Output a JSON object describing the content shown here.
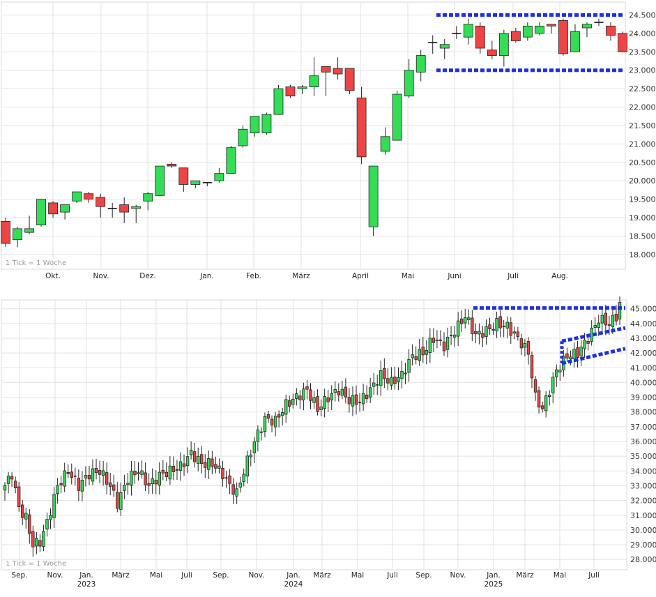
{
  "chart_data": [
    {
      "type": "candlestick",
      "interval_note": "1 Tick = 1 Woche",
      "x_labels": [
        "Okt.",
        "Nov.",
        "Dez.",
        "Jan.",
        "Feb.",
        "März",
        "April",
        "Mai",
        "Juni",
        "Juli",
        "Aug."
      ],
      "y_ticks": [
        "18.000",
        "18.500",
        "19.000",
        "19.500",
        "20.000",
        "20.500",
        "21.000",
        "21.500",
        "22.000",
        "22.500",
        "23.000",
        "23.500",
        "24.000",
        "24.500"
      ],
      "ylim": [
        17.6,
        24.85
      ],
      "colors": {
        "up": "#33dd55",
        "down": "#ee4444",
        "annotation": "#1f2fe6"
      },
      "candles": [
        [
          18.9,
          18.3,
          19.0,
          18.2
        ],
        [
          18.4,
          18.7,
          18.75,
          18.2
        ],
        [
          18.6,
          18.7,
          19.05,
          18.55
        ],
        [
          18.8,
          19.5,
          19.5,
          18.75
        ],
        [
          19.4,
          19.1,
          19.45,
          19.0
        ],
        [
          19.15,
          19.35,
          19.35,
          18.95
        ],
        [
          19.45,
          19.7,
          19.7,
          19.4
        ],
        [
          19.65,
          19.5,
          19.7,
          19.4
        ],
        [
          19.55,
          19.3,
          19.65,
          19.0
        ],
        [
          19.25,
          19.25,
          19.4,
          19.0
        ],
        [
          19.35,
          19.15,
          19.55,
          18.85
        ],
        [
          19.25,
          19.3,
          19.35,
          18.85
        ],
        [
          19.45,
          19.65,
          19.7,
          19.2
        ],
        [
          19.6,
          20.4,
          20.4,
          19.6
        ],
        [
          20.45,
          20.4,
          20.5,
          20.35
        ],
        [
          20.35,
          19.9,
          20.35,
          19.7
        ],
        [
          19.9,
          20.0,
          20.0,
          19.8
        ],
        [
          19.95,
          19.95,
          19.95,
          19.85
        ],
        [
          20.0,
          20.2,
          20.35,
          19.95
        ],
        [
          20.2,
          20.9,
          20.95,
          20.2
        ],
        [
          20.95,
          21.4,
          21.5,
          20.9
        ],
        [
          21.3,
          21.75,
          21.75,
          21.2
        ],
        [
          21.3,
          21.8,
          21.85,
          21.25
        ],
        [
          21.8,
          22.5,
          22.6,
          21.8
        ],
        [
          22.55,
          22.3,
          22.6,
          22.25
        ],
        [
          22.5,
          22.55,
          22.6,
          22.35
        ],
        [
          22.55,
          22.85,
          23.35,
          22.3
        ],
        [
          23.1,
          22.95,
          23.1,
          22.3
        ],
        [
          23.05,
          22.9,
          23.35,
          22.75
        ],
        [
          23.05,
          22.45,
          23.05,
          22.35
        ],
        [
          22.25,
          20.65,
          22.55,
          20.45
        ],
        [
          18.75,
          20.4,
          20.4,
          18.5
        ],
        [
          20.8,
          21.2,
          21.45,
          20.7
        ],
        [
          21.1,
          22.35,
          22.45,
          21.1
        ],
        [
          22.3,
          23.0,
          23.3,
          22.25
        ],
        [
          22.95,
          23.4,
          23.55,
          22.7
        ],
        [
          23.75,
          23.75,
          23.95,
          23.45
        ],
        [
          23.6,
          23.7,
          23.85,
          23.3
        ],
        [
          24.0,
          24.0,
          24.2,
          23.85
        ],
        [
          23.9,
          24.25,
          24.4,
          23.7
        ],
        [
          24.2,
          23.6,
          24.3,
          23.45
        ],
        [
          23.55,
          23.4,
          23.8,
          23.3
        ],
        [
          23.4,
          24.0,
          24.1,
          23.1
        ],
        [
          24.05,
          23.8,
          24.15,
          23.75
        ],
        [
          23.9,
          24.2,
          24.3,
          23.8
        ],
        [
          24.0,
          24.2,
          24.3,
          23.95
        ],
        [
          24.25,
          24.2,
          24.25,
          24.0
        ],
        [
          24.35,
          23.45,
          24.4,
          23.4
        ],
        [
          23.5,
          24.05,
          24.25,
          23.5
        ],
        [
          24.15,
          24.25,
          24.3,
          23.9
        ],
        [
          24.3,
          24.3,
          24.4,
          24.2
        ],
        [
          24.2,
          23.95,
          24.3,
          23.8
        ],
        [
          24.0,
          23.5,
          24.05,
          23.5
        ]
      ]
    },
    {
      "type": "candlestick",
      "interval_note": "1 Tick = 1 Woche",
      "x_labels": [
        "Sep.",
        "Nov.",
        "Jan.",
        "März",
        "Mai",
        "Juli",
        "Sep.",
        "Nov.",
        "Jan.",
        "März",
        "Mai",
        "Juli",
        "Sep.",
        "Nov.",
        "Jan.",
        "März",
        "Mai",
        "Juli"
      ],
      "year_labels": [
        "2023",
        "2024",
        "2025"
      ],
      "y_ticks": [
        "28.000",
        "29.000",
        "30.000",
        "31.000",
        "32.000",
        "33.000",
        "34.000",
        "35.000",
        "36.000",
        "37.000",
        "38.000",
        "39.000",
        "40.000",
        "41.000",
        "42.000",
        "43.000",
        "44.000",
        "45.000"
      ],
      "ylim": [
        27.3,
        45.6
      ],
      "colors": {
        "up": "#33dd55",
        "down": "#ee4444",
        "annotation": "#1f2fe6"
      },
      "anchors": [
        [
          0,
          33.0
        ],
        [
          2,
          33.8
        ],
        [
          4,
          31.5
        ],
        [
          6,
          30.8
        ],
        [
          8,
          29.0
        ],
        [
          10,
          29.2
        ],
        [
          12,
          30.5
        ],
        [
          15,
          33.0
        ],
        [
          18,
          34.0
        ],
        [
          21,
          33.0
        ],
        [
          24,
          33.8
        ],
        [
          27,
          34.0
        ],
        [
          30,
          33.0
        ],
        [
          32,
          31.8
        ],
        [
          35,
          33.5
        ],
        [
          38,
          34.0
        ],
        [
          41,
          33.0
        ],
        [
          44,
          33.7
        ],
        [
          47,
          34.0
        ],
        [
          50,
          34.3
        ],
        [
          53,
          35.2
        ],
        [
          56,
          34.5
        ],
        [
          59,
          34.5
        ],
        [
          62,
          33.8
        ],
        [
          64,
          33.0
        ],
        [
          66,
          32.5
        ],
        [
          68,
          34.0
        ],
        [
          71,
          36.0
        ],
        [
          74,
          37.5
        ],
        [
          77,
          37.4
        ],
        [
          80,
          38.5
        ],
        [
          83,
          39.0
        ],
        [
          86,
          39.5
        ],
        [
          89,
          38.2
        ],
        [
          92,
          39.0
        ],
        [
          95,
          39.5
        ],
        [
          98,
          38.8
        ],
        [
          101,
          38.7
        ],
        [
          104,
          39.5
        ],
        [
          107,
          40.5
        ],
        [
          110,
          40.0
        ],
        [
          113,
          40.5
        ],
        [
          116,
          41.8
        ],
        [
          119,
          42.0
        ],
        [
          122,
          43.0
        ],
        [
          125,
          42.5
        ],
        [
          128,
          43.5
        ],
        [
          131,
          44.5
        ],
        [
          134,
          43.2
        ],
        [
          137,
          43.5
        ],
        [
          140,
          44.0
        ],
        [
          143,
          43.8
        ],
        [
          146,
          43.0
        ],
        [
          149,
          42.0
        ],
        [
          151,
          39.0
        ],
        [
          153,
          38.2
        ],
        [
          155,
          39.5
        ],
        [
          157,
          40.8
        ],
        [
          160,
          41.8
        ],
        [
          163,
          42.0
        ],
        [
          166,
          43.0
        ],
        [
          169,
          44.3
        ],
        [
          172,
          44.0
        ],
        [
          174,
          44.5
        ],
        [
          175,
          45.3
        ]
      ]
    }
  ]
}
